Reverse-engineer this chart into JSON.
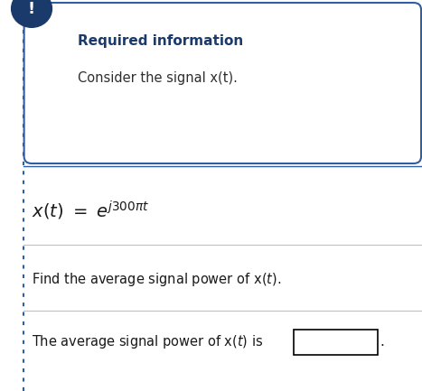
{
  "bg_color": "#ffffff",
  "dotted_border_color": "#2e5fa3",
  "info_box_border_color": "#2e5fa3",
  "info_box_bg": "#ffffff",
  "icon_circle_color": "#1a3a6b",
  "icon_text": "!",
  "icon_text_color": "#ffffff",
  "required_info_title": "Required information",
  "required_info_title_color": "#1a3a6b",
  "required_info_body": "Consider the signal x(t).",
  "required_info_body_color": "#2e2e2e",
  "text_color": "#1a1a1a",
  "sep_color": "#c0c0c0",
  "fig_width": 4.67,
  "fig_height": 4.33,
  "dpi": 100
}
